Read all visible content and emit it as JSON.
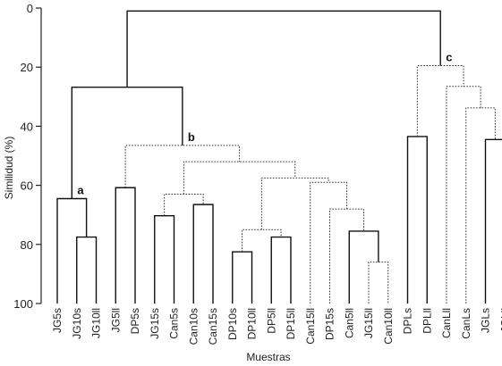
{
  "chart_data": {
    "type": "dendrogram",
    "xlabel": "Muestras",
    "ylabel": "Similidud (%)",
    "ylim": [
      0,
      100
    ],
    "y_reversed": true,
    "yticks": [
      0,
      20,
      40,
      60,
      80,
      100
    ],
    "leaves": [
      "JG5s",
      "JG10s",
      "JG10ll",
      "JG5ll",
      "DP5s",
      "JG15s",
      "Can5s",
      "Can10s",
      "Can15s",
      "DP10s",
      "DP10ll",
      "DP5ll",
      "DP15ll",
      "Can15ll",
      "DP15s",
      "Can5ll",
      "JG15ll",
      "Can10ll",
      "DPLs",
      "DPLll",
      "CanLll",
      "CanLs",
      "JGLs",
      "JGLll"
    ],
    "merges": [
      {
        "left": "JG10s",
        "right": "JG10ll",
        "similarity": 77.5,
        "style": "solid"
      },
      {
        "left": "JG5s",
        "right": "m0",
        "similarity": 64.5,
        "style": "solid"
      },
      {
        "left": "JG5ll",
        "right": "DP5s",
        "similarity": 60.8,
        "style": "solid"
      },
      {
        "left": "JG15s",
        "right": "Can5s",
        "similarity": 70.3,
        "style": "solid"
      },
      {
        "left": "Can10s",
        "right": "Can15s",
        "similarity": 66.5,
        "style": "solid"
      },
      {
        "left": "m3",
        "right": "m4",
        "similarity": 63.0,
        "style": "dotted"
      },
      {
        "left": "DP10s",
        "right": "DP10ll",
        "similarity": 82.5,
        "style": "solid"
      },
      {
        "left": "DP5ll",
        "right": "DP15ll",
        "similarity": 77.5,
        "style": "solid"
      },
      {
        "left": "m6",
        "right": "m7",
        "similarity": 75.0,
        "style": "dotted"
      },
      {
        "left": "JG15ll",
        "right": "Can10ll",
        "similarity": 86.0,
        "style": "dotted"
      },
      {
        "left": "Can5ll",
        "right": "m9",
        "similarity": 75.5,
        "style": "solid"
      },
      {
        "left": "DP15s",
        "right": "m10",
        "similarity": 68.0,
        "style": "dotted"
      },
      {
        "left": "Can15ll",
        "right": "m11",
        "similarity": 59.0,
        "style": "dotted"
      },
      {
        "left": "m8",
        "right": "m12",
        "similarity": 57.5,
        "style": "dotted"
      },
      {
        "left": "m5",
        "right": "m13",
        "similarity": 52.0,
        "style": "dotted"
      },
      {
        "left": "m2",
        "right": "m14",
        "similarity": 46.5,
        "style": "dotted"
      },
      {
        "left": "m1",
        "right": "m15",
        "similarity": 26.8,
        "style": "solid"
      },
      {
        "left": "DPLs",
        "right": "DPLll",
        "similarity": 43.5,
        "style": "solid"
      },
      {
        "left": "JGLs",
        "right": "JGLll",
        "similarity": 44.5,
        "style": "solid"
      },
      {
        "left": "CanLs",
        "right": "m18",
        "similarity": 33.8,
        "style": "dotted"
      },
      {
        "left": "CanLll",
        "right": "m19",
        "similarity": 26.5,
        "style": "dotted"
      },
      {
        "left": "m17",
        "right": "m20",
        "similarity": 19.5,
        "style": "dotted"
      },
      {
        "left": "m16",
        "right": "m21",
        "similarity": 1.0,
        "style": "solid"
      }
    ],
    "cluster_labels": [
      {
        "text": "a",
        "node": "m1"
      },
      {
        "text": "b",
        "node": "m15"
      },
      {
        "text": "c",
        "node": "m21"
      }
    ]
  }
}
